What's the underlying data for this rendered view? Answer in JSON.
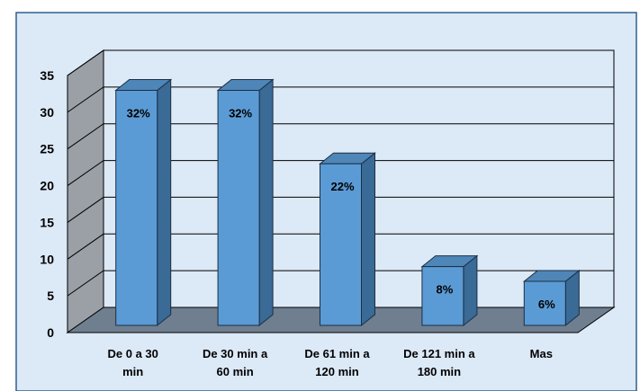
{
  "chart_data": {
    "type": "bar",
    "style": "3d-column",
    "categories": [
      [
        "De 0 a  30",
        "min"
      ],
      [
        "De 30 min a",
        "60 min"
      ],
      [
        "De 61 min a",
        "120 min"
      ],
      [
        "De 121  min a",
        "180 min"
      ],
      [
        "Mas"
      ]
    ],
    "values": [
      32,
      32,
      22,
      8,
      6
    ],
    "data_labels": [
      "32%",
      "32%",
      "22%",
      "8%",
      "6%"
    ],
    "yticks": [
      "0",
      "5",
      "10",
      "15",
      "20",
      "25",
      "30",
      "35"
    ],
    "ylim": [
      0,
      35
    ],
    "grid": true,
    "legend": "none",
    "colors": {
      "bar_front": "#5b9bd5",
      "bar_side": "#3a6a96",
      "bar_top": "#4f86b8",
      "bar_edge": "#1c2f44",
      "plot_bg": "#dce9f7",
      "floor": "#6f7f90",
      "left_wall": "#9aa0a6",
      "frame_outer": "#2f5f8f",
      "page_bg": "#dce9f7"
    }
  }
}
